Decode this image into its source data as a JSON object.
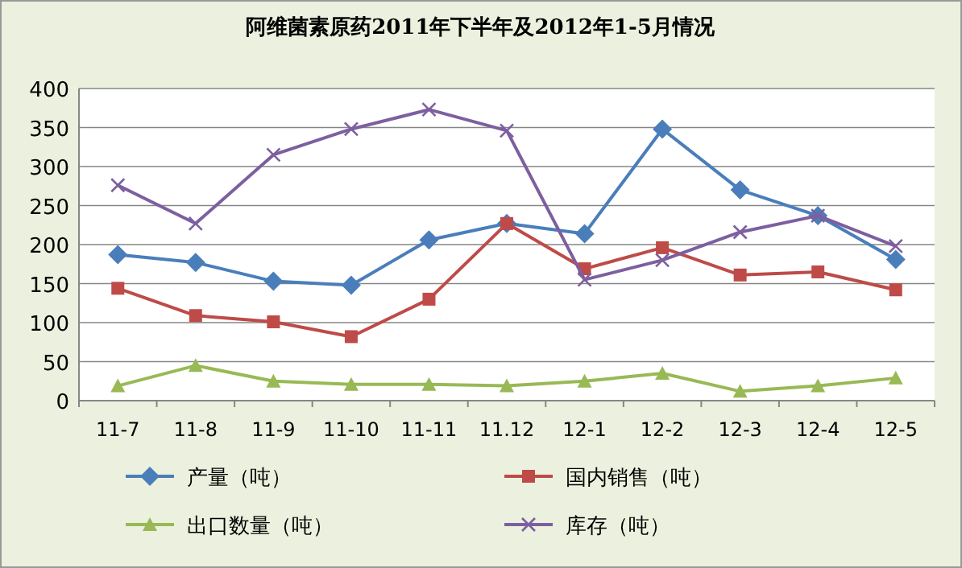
{
  "chart_data": {
    "type": "line",
    "title": "阿维菌素原药2011年下半年及2012年1-5月情况",
    "categories": [
      "11-7",
      "11-8",
      "11-9",
      "11-10",
      "11-11",
      "11.12",
      "12-1",
      "12-2",
      "12-3",
      "12-4",
      "12-5"
    ],
    "ylim": [
      0,
      400
    ],
    "yticks": [
      0,
      50,
      100,
      150,
      200,
      250,
      300,
      350,
      400
    ],
    "grid": "y",
    "legend": "bottom",
    "series": [
      {
        "name": "产量（吨）",
        "color": "#4a7ebb",
        "marker": "diamond",
        "values": [
          187,
          177,
          153,
          148,
          206,
          227,
          214,
          348,
          270,
          237,
          181
        ]
      },
      {
        "name": "国内销售（吨）",
        "color": "#be4b48",
        "marker": "square",
        "values": [
          144,
          109,
          101,
          82,
          130,
          227,
          169,
          196,
          161,
          165,
          142
        ]
      },
      {
        "name": "出口数量（吨）",
        "color": "#98b954",
        "marker": "triangle",
        "values": [
          19,
          45,
          25,
          21,
          21,
          19,
          25,
          35,
          12,
          19,
          29
        ]
      },
      {
        "name": "库存（吨）",
        "color": "#7d5fa0",
        "marker": "cross",
        "values": [
          276,
          227,
          315,
          348,
          373,
          346,
          155,
          180,
          216,
          237,
          198
        ]
      }
    ]
  }
}
